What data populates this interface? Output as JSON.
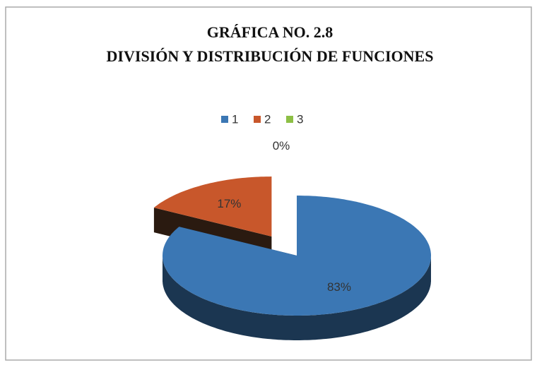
{
  "chart_data": {
    "type": "pie",
    "title": "GRÁFICA NO. 2.8",
    "subtitle": "DIVISIÓN Y DISTRIBUCIÓN DE FUNCIONES",
    "categories": [
      "1",
      "2",
      "3"
    ],
    "values": [
      83,
      17,
      0
    ],
    "value_labels": [
      "83%",
      "17%",
      "0%"
    ],
    "colors": [
      "#3b77b4",
      "#c8572b",
      "#8dbf45"
    ],
    "legend": "top"
  }
}
